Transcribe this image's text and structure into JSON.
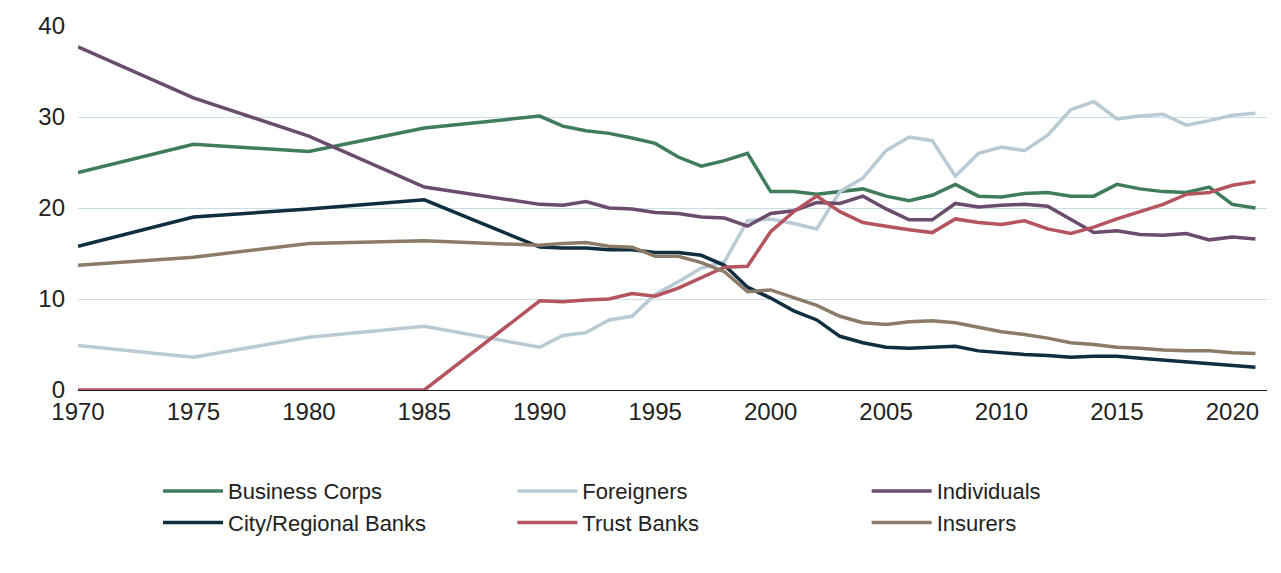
{
  "chart_data": {
    "type": "line",
    "x": [
      1970,
      1975,
      1980,
      1985,
      1990,
      1991,
      1992,
      1993,
      1994,
      1995,
      1996,
      1997,
      1998,
      1999,
      2000,
      2001,
      2002,
      2003,
      2004,
      2005,
      2006,
      2007,
      2008,
      2009,
      2010,
      2011,
      2012,
      2013,
      2014,
      2015,
      2016,
      2017,
      2018,
      2019,
      2020,
      2021
    ],
    "series": [
      {
        "name": "Business Corps",
        "color": "#3f7c5c",
        "values": [
          23.9,
          27.0,
          26.2,
          28.8,
          30.1,
          29.0,
          28.5,
          28.2,
          27.7,
          27.1,
          25.6,
          24.6,
          25.2,
          26.0,
          21.8,
          21.8,
          21.5,
          21.8,
          22.1,
          21.3,
          20.8,
          21.4,
          22.6,
          21.3,
          21.2,
          21.6,
          21.7,
          21.3,
          21.3,
          22.6,
          22.1,
          21.8,
          21.7,
          22.3,
          20.4,
          20.0
        ]
      },
      {
        "name": "Foreigners",
        "color": "#b8cad4",
        "values": [
          4.9,
          3.6,
          5.8,
          7.0,
          4.7,
          6.0,
          6.3,
          7.7,
          8.1,
          10.5,
          11.9,
          13.4,
          14.1,
          18.6,
          18.8,
          18.3,
          17.7,
          21.8,
          23.3,
          26.3,
          27.8,
          27.4,
          23.5,
          26.0,
          26.7,
          26.3,
          28.0,
          30.8,
          31.7,
          29.8,
          30.1,
          30.3,
          29.1,
          29.6,
          30.2,
          30.4
        ]
      },
      {
        "name": "Individuals",
        "color": "#6a4d6d",
        "values": [
          37.7,
          32.1,
          27.9,
          22.3,
          20.4,
          20.3,
          20.7,
          20.0,
          19.9,
          19.5,
          19.4,
          19.0,
          18.9,
          18.0,
          19.4,
          19.7,
          20.6,
          20.5,
          21.3,
          19.9,
          18.7,
          18.7,
          20.5,
          20.1,
          20.3,
          20.4,
          20.2,
          18.7,
          17.3,
          17.5,
          17.1,
          17.0,
          17.2,
          16.5,
          16.8,
          16.6
        ]
      },
      {
        "name": "City/Regional Banks",
        "color": "#0f2e3f",
        "values": [
          15.8,
          19.0,
          19.9,
          20.9,
          15.7,
          15.6,
          15.6,
          15.4,
          15.4,
          15.1,
          15.1,
          14.8,
          13.7,
          11.3,
          10.1,
          8.7,
          7.7,
          5.9,
          5.2,
          4.7,
          4.6,
          4.7,
          4.8,
          4.3,
          4.1,
          3.9,
          3.8,
          3.6,
          3.7,
          3.7,
          3.5,
          3.3,
          3.1,
          2.9,
          2.7,
          2.5
        ]
      },
      {
        "name": "Trust Banks",
        "color": "#b4545e",
        "values": [
          0,
          0,
          0,
          0,
          9.8,
          9.7,
          9.9,
          10.0,
          10.6,
          10.3,
          11.2,
          12.4,
          13.5,
          13.6,
          17.4,
          19.6,
          21.3,
          19.6,
          18.4,
          18.0,
          17.6,
          17.3,
          18.8,
          18.4,
          18.2,
          18.6,
          17.7,
          17.2,
          17.9,
          18.8,
          19.6,
          20.4,
          21.5,
          21.7,
          22.5,
          22.9
        ]
      },
      {
        "name": "Insurers",
        "color": "#8b7b68",
        "values": [
          13.7,
          14.6,
          16.1,
          16.4,
          15.9,
          16.1,
          16.2,
          15.8,
          15.7,
          14.7,
          14.7,
          14.0,
          13.0,
          10.8,
          11.0,
          10.2,
          9.3,
          8.1,
          7.4,
          7.2,
          7.5,
          7.6,
          7.4,
          6.9,
          6.4,
          6.1,
          5.7,
          5.2,
          5.0,
          4.7,
          4.6,
          4.4,
          4.3,
          4.3,
          4.1,
          4.0
        ]
      }
    ],
    "xlim": [
      1970,
      2021.5
    ],
    "xticks": [
      1970,
      1975,
      1980,
      1985,
      1990,
      1995,
      2000,
      2005,
      2010,
      2015,
      2020
    ],
    "ylim": [
      0,
      40
    ],
    "yticks": [
      0,
      10,
      20,
      30,
      40
    ],
    "grid": true,
    "legend": "bottom"
  }
}
